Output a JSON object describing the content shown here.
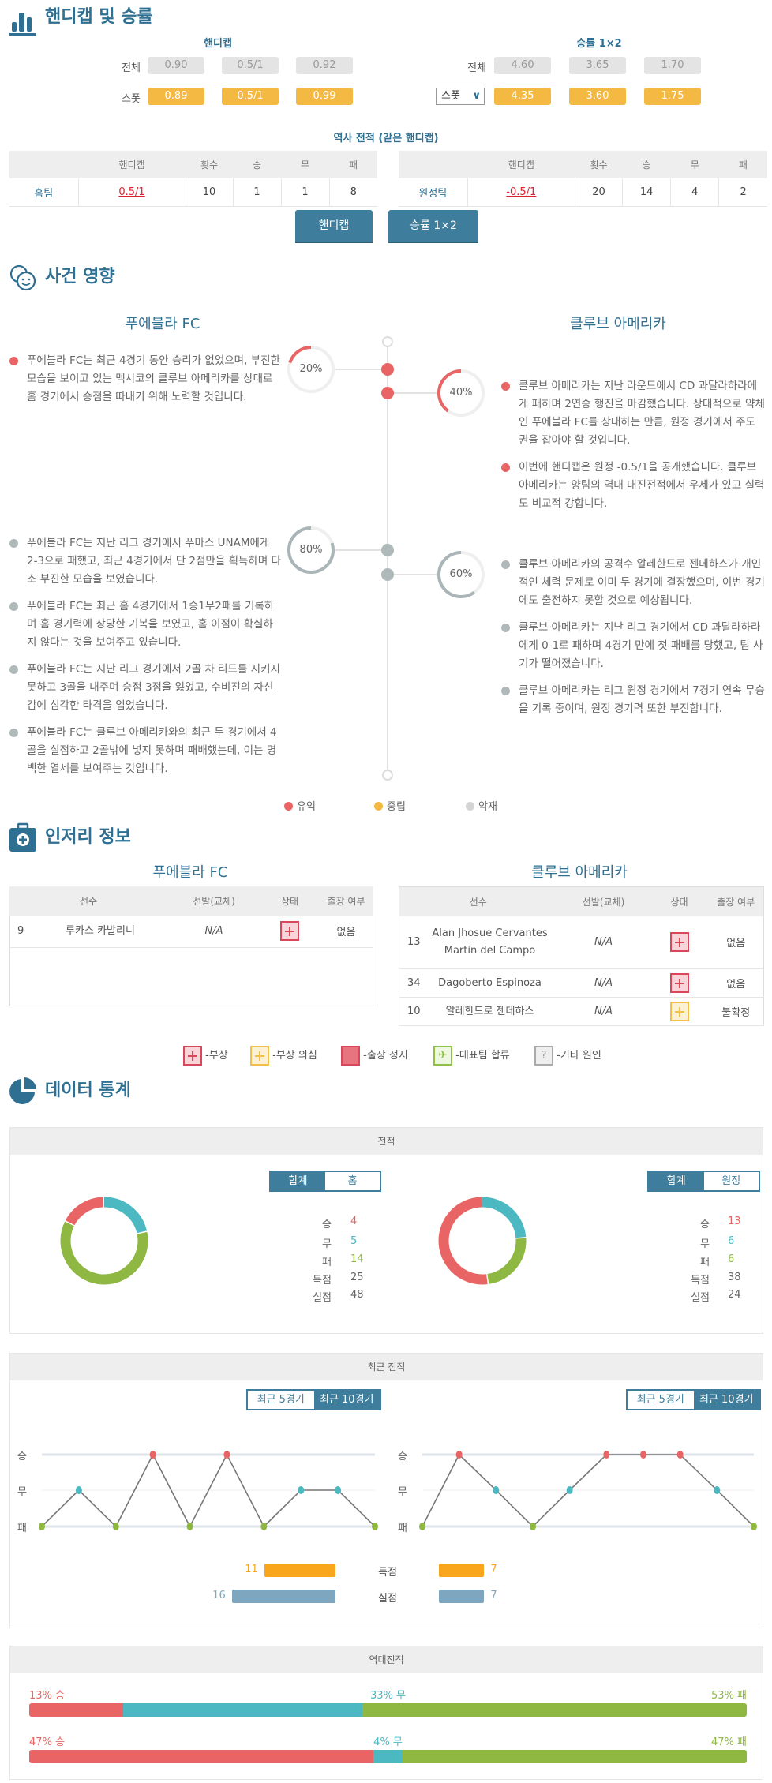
{
  "colors": {
    "title": "#2e6f92",
    "win": "#e96565",
    "draw": "#4bb8c2",
    "loss": "#8fb842",
    "goals_for": "#f9a61d",
    "goals_against": "#7ea6bf",
    "neutral": "#f4b942",
    "bad": "#d5d5d5",
    "bad_dot": "#b0b9ba"
  },
  "odds": {
    "title": "핸디캡 및 승률",
    "icon": "bar-chart-icon",
    "handicap": {
      "title": "핸디캡",
      "rows": [
        {
          "label": "전체",
          "values": [
            "0.90",
            "0.5/1",
            "0.92"
          ]
        },
        {
          "label": "스폿",
          "values": [
            "0.89",
            "0.5/1",
            "0.99"
          ]
        }
      ]
    },
    "winrate": {
      "title": "승률 1×2",
      "rows": [
        {
          "label": "전체",
          "values": [
            "4.60",
            "3.65",
            "1.70"
          ]
        },
        {
          "select": "스폿",
          "values": [
            "4.35",
            "3.60",
            "1.75"
          ]
        }
      ]
    }
  },
  "history": {
    "title": "역사 전적 (같은 핸디캡)",
    "columns": [
      "",
      "핸디캡",
      "횟수",
      "승",
      "무",
      "패"
    ],
    "home": [
      "홈팀",
      "0.5/1",
      "10",
      "1",
      "1",
      "8"
    ],
    "away": [
      "원정팀",
      "-0.5/1",
      "20",
      "14",
      "4",
      "2"
    ]
  },
  "buttons": [
    "핸디캡",
    "승률 1×2"
  ],
  "impact": {
    "title": "사건 영향",
    "icon": "faces-icon",
    "home_team": "푸에블라 FC",
    "away_team": "클루브 아메리카",
    "groups": [
      {
        "home_pct": "20%",
        "away_pct": "40%",
        "home_value": 20,
        "away_value": 40,
        "type": "advantage",
        "home_items": [
          "푸에블라 FC는 최근 4경기 동안 승리가 없었으며, 부진한 모습을 보이고 있는 멕시코의 클루브 아메리카를 상대로 홈 경기에서 승점을 따내기 위해 노력할 것입니다."
        ],
        "away_items": [
          "클루브 아메리카는 지난 라운드에서 CD 과달라하라에게 패하며 2연승 행진을 마감했습니다. 상대적으로 약체인 푸에블라 FC를 상대하는 만큼, 원정 경기에서 주도권을 잡아야 할 것입니다.",
          "이번에 핸디캡은 원정 -0.5/1을 공개했습니다. 클루브 아메리카는 양팀의 역대 대진전적에서 우세가 있고 실력도 비교적 강합니다."
        ]
      },
      {
        "home_pct": "80%",
        "away_pct": "60%",
        "home_value": 80,
        "away_value": 60,
        "type": "disadvantage",
        "home_items": [
          "푸에블라 FC는 지난 리그 경기에서 푸마스 UNAM에게 2-3으로 패했고, 최근 4경기에서 단 2점만을 획득하며 다소 부진한 모습을 보였습니다.",
          "푸에블라 FC는 최근 홈 4경기에서 1승1무2패를 기록하며 홈 경기력에 상당한 기복을 보였고, 홈 이점이 확실하지 않다는 것을 보여주고 있습니다.",
          "푸에블라 FC는 지난 리그 경기에서 2골 차 리드를 지키지 못하고 3골을 내주며 승점 3점을 잃었고, 수비진의 자신감에 심각한 타격을 입었습니다.",
          "푸에블라 FC는 클루브 아메리카와의 최근 두 경기에서 4골을 실점하고 2골밖에 넣지 못하며 패배했는데, 이는 명백한 열세를 보여주는 것입니다."
        ],
        "away_items": [
          "클루브 아메리카의 공격수 알레한드로 젠데하스가 개인적인 체력 문제로 이미 두 경기에 결장했으며, 이번 경기에도 출전하지 못할 것으로 예상됩니다.",
          "클루브 아메리카는 지난 리그 경기에서 CD 과달라하라에게 0-1로 패하며 4경기 만에 첫 패배를 당했고, 팀 사기가 떨어졌습니다.",
          "클루브 아메리카는 리그 원정 경기에서 7경기 연속 무승을 기록 중이며, 원정 경기력 또한 부진합니다."
        ]
      }
    ],
    "legend": [
      "유익",
      "중립",
      "악재"
    ]
  },
  "injury": {
    "title": "인저리 정보",
    "icon": "medical-kit-icon",
    "home_team": "푸에블라 FC",
    "away_team": "클루브 아메리카",
    "columns": [
      "선수",
      "선발(교체)",
      "상태",
      "출장 여부"
    ],
    "home_rows": [
      {
        "num": "9",
        "name": "루카스 카발리니",
        "start": "N/A",
        "status": "injury",
        "avail": "없음"
      }
    ],
    "away_rows": [
      {
        "num": "13",
        "name": "Alan Jhosue Cervantes Martin del Campo",
        "start": "N/A",
        "status": "injury",
        "avail": "없음"
      },
      {
        "num": "34",
        "name": "Dagoberto Espinoza",
        "start": "N/A",
        "status": "injury",
        "avail": "없음"
      },
      {
        "num": "10",
        "name": "알레한드로 젠데하스",
        "start": "N/A",
        "status": "doubtful",
        "avail": "불확정"
      }
    ],
    "legend": [
      "-부상",
      "-부상 의심",
      "-출장 정지",
      "-대표팀 합류",
      "-기타 원인"
    ]
  },
  "stats": {
    "title": "데이터 통계",
    "icon": "pie-chart-icon",
    "record": {
      "title": "전적",
      "home_toggle": [
        "합계",
        "홈"
      ],
      "away_toggle": [
        "합계",
        "원정"
      ],
      "labels": [
        "승",
        "무",
        "패",
        "득점",
        "실점"
      ],
      "home_values": [
        "4",
        "5",
        "14",
        "25",
        "48"
      ],
      "away_values": [
        "13",
        "6",
        "6",
        "38",
        "24"
      ]
    },
    "chart_data": [
      {
        "type": "pie",
        "name": "home-record-donut",
        "categories": [
          "무",
          "패",
          "승"
        ],
        "values": [
          5,
          14,
          4
        ]
      },
      {
        "type": "pie",
        "name": "away-record-donut",
        "categories": [
          "무",
          "패",
          "승"
        ],
        "values": [
          6,
          6,
          13
        ]
      },
      {
        "type": "line",
        "name": "home-recent-form",
        "y_categories": [
          "패",
          "무",
          "승"
        ],
        "values": [
          "패",
          "무",
          "패",
          "승",
          "패",
          "승",
          "패",
          "무",
          "무",
          "패"
        ]
      },
      {
        "type": "line",
        "name": "away-recent-form",
        "y_categories": [
          "패",
          "무",
          "승"
        ],
        "values": [
          "패",
          "승",
          "무",
          "패",
          "무",
          "승",
          "승",
          "승",
          "무",
          "패"
        ]
      },
      {
        "type": "bar",
        "name": "recent-goals",
        "categories": [
          "득점",
          "실점"
        ],
        "series": [
          {
            "values": [
              11,
              16
            ]
          },
          {
            "values": [
              7,
              7
            ]
          }
        ]
      },
      {
        "type": "bar",
        "name": "h2h",
        "stacked": true,
        "categories": [
          "승",
          "무",
          "패"
        ],
        "series": [
          {
            "values": [
              13,
              33,
              53
            ]
          },
          {
            "values": [
              47,
              4,
              47
            ]
          }
        ]
      }
    ],
    "recent": {
      "title": "최근 전적",
      "toggle": [
        "최근 5경기",
        "최근 10경기"
      ],
      "axis": [
        "승",
        "무",
        "패"
      ],
      "goal_labels": [
        "득점",
        "실점"
      ],
      "home_goals": [
        "11",
        "16"
      ],
      "away_goals": [
        "7",
        "7"
      ]
    },
    "h2h": {
      "title": "역대전적",
      "rows": [
        {
          "win": "13% 승",
          "draw": "33% 무",
          "loss": "53% 패"
        },
        {
          "win": "47% 승",
          "draw": "4% 무",
          "loss": "47% 패"
        }
      ]
    }
  }
}
